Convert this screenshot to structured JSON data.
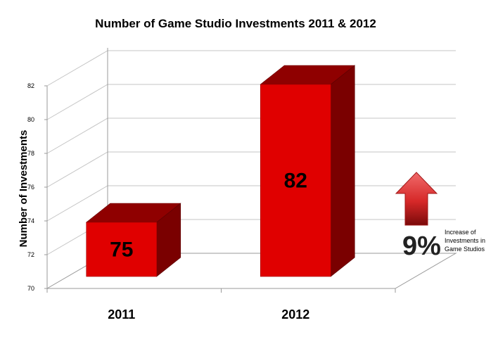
{
  "chart_data": {
    "type": "bar",
    "title": "Number of Game Studio Investments 2011 & 2012",
    "ylabel": "Number of Investments",
    "xlabel": "",
    "categories": [
      "2011",
      "2012"
    ],
    "values": [
      75,
      82
    ],
    "data_labels": [
      "75",
      "82"
    ],
    "ylim": [
      70,
      82
    ],
    "yticks": [
      "70",
      "72",
      "74",
      "76",
      "78",
      "80",
      "82"
    ],
    "grid": true,
    "style": "3d-column",
    "bar_color": "#e00000",
    "annotation": {
      "value": "9%",
      "text_lines": [
        "Increase of",
        "Investments in",
        "Game Studios"
      ],
      "arrow_color": "#e03a3a",
      "arrow_direction": "up"
    }
  }
}
